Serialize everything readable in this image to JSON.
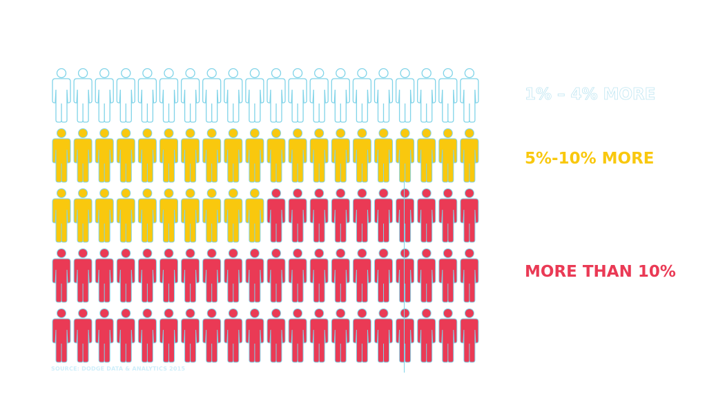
{
  "chart_data": {
    "type": "pictogram",
    "title": "",
    "total_icons": 100,
    "columns": 20,
    "series": [
      {
        "name": "1% – 4% MORE",
        "count": 20,
        "color": "#ffffff",
        "outline": "#7fd3e8"
      },
      {
        "name": "5%-10% MORE",
        "count": 30,
        "color": "#f9c80e",
        "outline": "#7fd3e8"
      },
      {
        "name": "MORE THAN 10%",
        "count": 50,
        "color": "#ea3a55",
        "outline": "#7fd3e8"
      }
    ]
  },
  "source": "SOURCE: DODGE DATA & ANALYTICS 2015",
  "colors": {
    "divider": "#7fd3e8"
  }
}
